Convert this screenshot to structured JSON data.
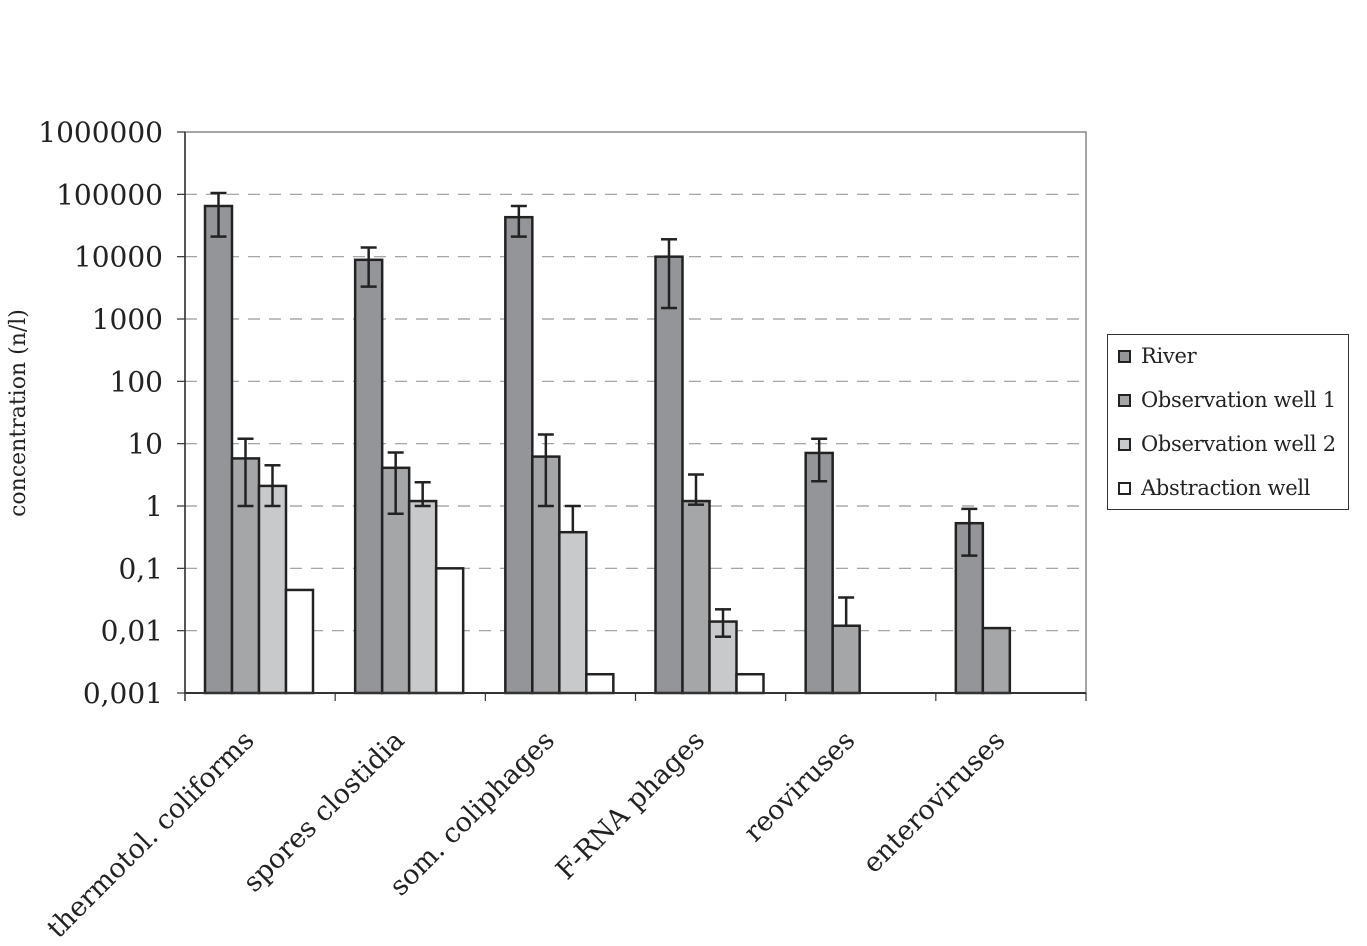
{
  "chart_data": {
    "type": "bar",
    "title": "",
    "xlabel": "",
    "ylabel": "concentration (n/l)",
    "yscale": "log",
    "ylim": [
      0.001,
      1000000
    ],
    "ytick_labels": [
      "1000000",
      "100000",
      "10000",
      "1000",
      "100",
      "10",
      "1",
      "0,1",
      "0,01",
      "0,001"
    ],
    "ytick_values": [
      1000000,
      100000,
      10000,
      1000,
      100,
      10,
      1,
      0.1,
      0.01,
      0.001
    ],
    "grid": "horizontal dashed",
    "legend_position": "right",
    "categories": [
      "thermotol. coliforms",
      "spores clostidia",
      "som. coliphages",
      "F-RNA phages",
      "reoviruses",
      "enteroviruses"
    ],
    "series": [
      {
        "name": "River",
        "color": "#939598",
        "values": [
          65000,
          8900,
          43000,
          10000,
          7.1,
          0.53
        ],
        "err_low": [
          21000,
          3300,
          21000,
          1500,
          2.5,
          0.16
        ],
        "err_high": [
          105000,
          14000,
          65000,
          19000,
          12,
          0.9
        ]
      },
      {
        "name": "Observation well 1",
        "color": "#a4a6a8",
        "values": [
          5.8,
          4.1,
          6.2,
          1.2,
          0.012,
          0.011
        ],
        "err_low": [
          1.0,
          0.75,
          1.0,
          1.05,
          null,
          null
        ],
        "err_high": [
          12,
          7.2,
          14,
          3.2,
          0.034,
          null
        ]
      },
      {
        "name": "Observation well 2",
        "color": "#c8c9cb",
        "values": [
          2.1,
          1.2,
          0.38,
          0.014,
          null,
          null
        ],
        "err_low": [
          1.0,
          1.0,
          null,
          0.008,
          null,
          null
        ],
        "err_high": [
          4.5,
          2.4,
          1.0,
          0.022,
          null,
          null
        ]
      },
      {
        "name": "Abstraction well",
        "color": "#ffffff",
        "values": [
          0.045,
          0.1,
          0.002,
          0.002,
          null,
          null
        ],
        "err_low": [
          null,
          null,
          null,
          null,
          null,
          null
        ],
        "err_high": [
          null,
          null,
          null,
          null,
          null,
          null
        ]
      }
    ]
  }
}
